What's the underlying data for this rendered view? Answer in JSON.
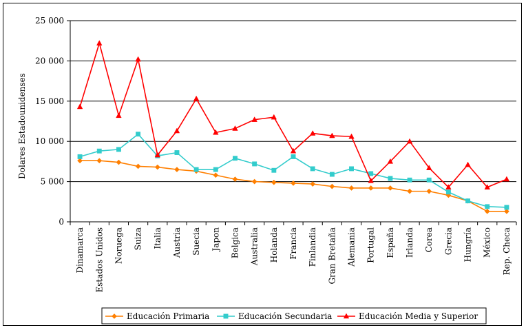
{
  "chart_data": {
    "type": "line",
    "title": "",
    "xlabel": "",
    "ylabel": "Dolares Estadounidenses",
    "ylim": [
      0,
      25000
    ],
    "yticks": [
      0,
      5000,
      10000,
      15000,
      20000,
      25000
    ],
    "ytick_labels": [
      "0",
      "5 000",
      "10 000",
      "15 000",
      "20 000",
      "25 000"
    ],
    "grid": "horizontal",
    "legend_position": "bottom",
    "categories": [
      "Dinamarca",
      "Estados Unidos",
      "Noruega",
      "Suiza",
      "Italia",
      "Austria",
      "Suecia",
      "Japon",
      "Belgica",
      "Australia",
      "Holanda",
      "Francia",
      "Finlandia",
      "Gran Bretaña",
      "Alemania",
      "Portugal",
      "España",
      "Irlanda",
      "Corea",
      "Grecia",
      "Hungría",
      "México",
      "Rep. Checa"
    ],
    "series": [
      {
        "name": "Educación Primaria",
        "color": "#ff7f00",
        "marker": "diamond",
        "values": [
          7600,
          7600,
          7400,
          6900,
          6800,
          6500,
          6300,
          5800,
          5300,
          5000,
          4900,
          4800,
          4700,
          4400,
          4200,
          4200,
          4200,
          3800,
          3800,
          3300,
          2600,
          1300,
          1300
        ]
      },
      {
        "name": "Educación Secundaria",
        "color": "#33cccc",
        "marker": "square",
        "values": [
          8100,
          8800,
          9000,
          10900,
          8200,
          8600,
          6500,
          6500,
          7900,
          7200,
          6400,
          8100,
          6600,
          5900,
          6600,
          6000,
          5400,
          5200,
          5200,
          3700,
          2600,
          1900,
          1800
        ]
      },
      {
        "name": "Educación Media y Superior",
        "color": "#ff0000",
        "marker": "triangle",
        "values": [
          14300,
          22200,
          13200,
          20200,
          8300,
          11300,
          15300,
          11100,
          11600,
          12700,
          13000,
          8800,
          11000,
          10700,
          10600,
          5100,
          7500,
          10000,
          6700,
          4300,
          7100,
          4300,
          5300
        ]
      }
    ]
  }
}
